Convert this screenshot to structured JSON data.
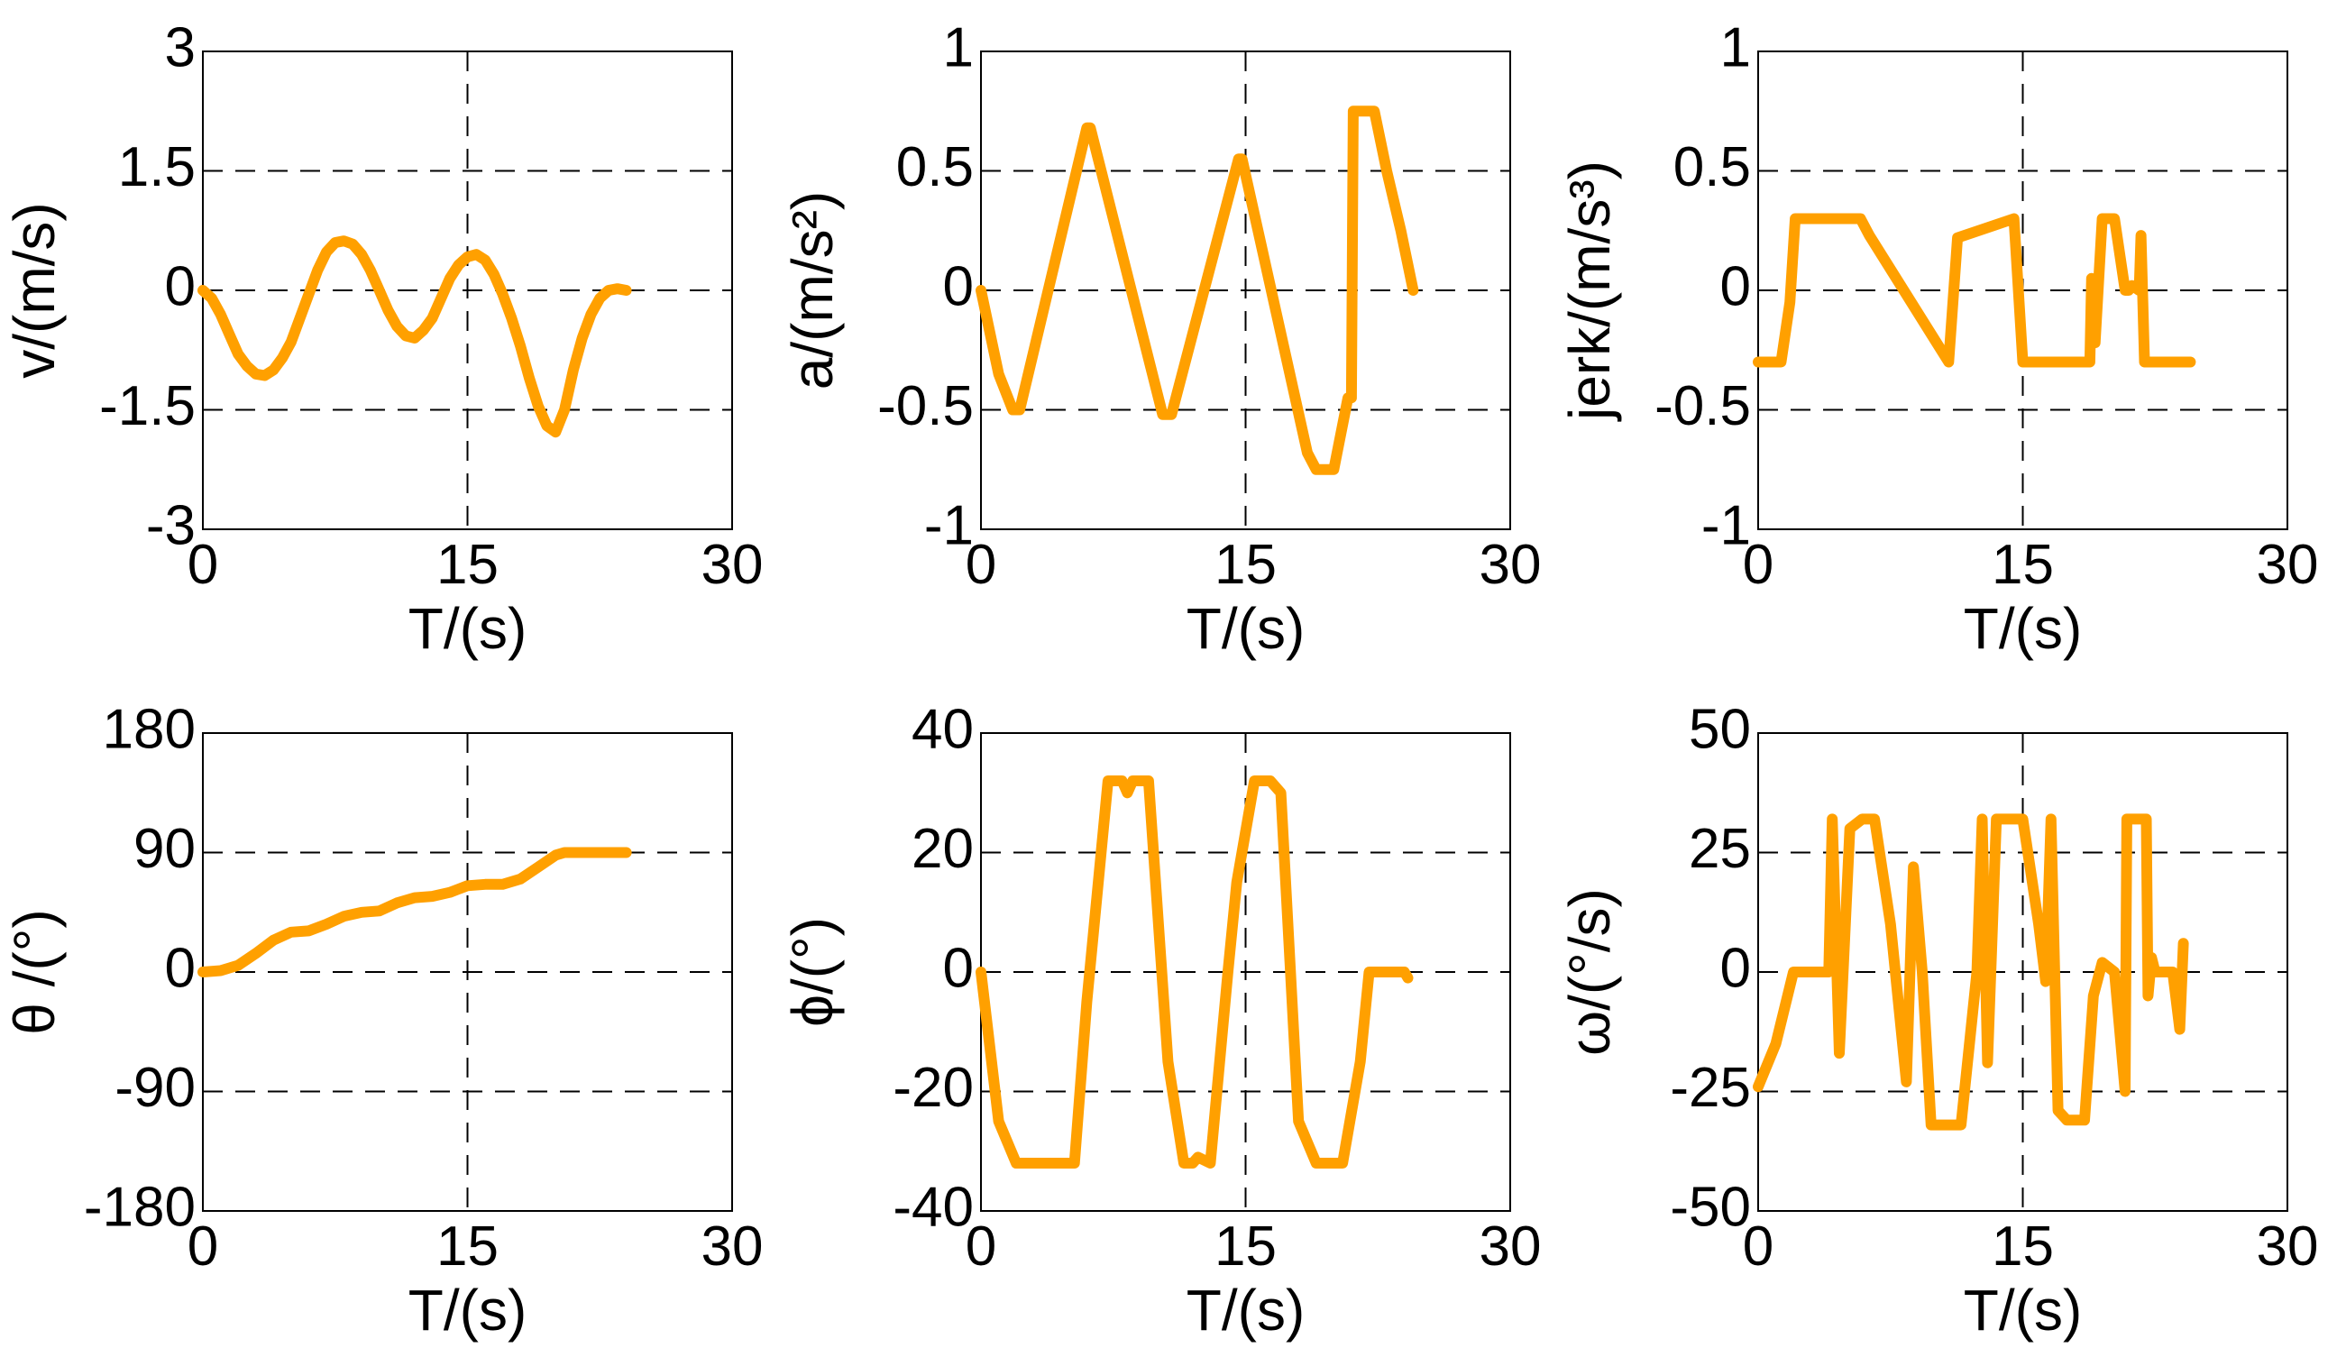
{
  "colors": {
    "series": "#ffa000",
    "axes": "#000000",
    "background": "#ffffff"
  },
  "chart_data": [
    {
      "type": "line",
      "xlabel": "T/(s)",
      "ylabel": "v/(m/s)",
      "xlim": [
        0,
        30
      ],
      "ylim": [
        -3,
        3
      ],
      "xticks": [
        0,
        15,
        30
      ],
      "xtick_labels": [
        "0",
        "15",
        "30"
      ],
      "yticks": [
        -3,
        -1.5,
        0,
        1.5,
        3
      ],
      "ytick_labels": [
        "-3",
        "-1.5",
        "0",
        "1.5",
        "3"
      ],
      "grid": "dashed",
      "series": [
        {
          "name": "v",
          "x": [
            0,
            0.5,
            1,
            1.5,
            2,
            2.5,
            3,
            3.5,
            4,
            4.5,
            5,
            5.5,
            6,
            6.5,
            7,
            7.5,
            8,
            8.5,
            9,
            9.5,
            10,
            10.5,
            11,
            11.5,
            12,
            12.5,
            13,
            13.5,
            14,
            14.5,
            15,
            15.5,
            16,
            16.5,
            17,
            17.5,
            18,
            18.5,
            19,
            19.5,
            20,
            20.5,
            21,
            21.5,
            22,
            22.5,
            23,
            23.5,
            24
          ],
          "y": [
            0,
            -0.1,
            -0.3,
            -0.55,
            -0.8,
            -0.95,
            -1.05,
            -1.07,
            -1.0,
            -0.85,
            -0.65,
            -0.35,
            -0.05,
            0.25,
            0.48,
            0.6,
            0.62,
            0.58,
            0.45,
            0.25,
            0.0,
            -0.25,
            -0.45,
            -0.57,
            -0.6,
            -0.5,
            -0.35,
            -0.1,
            0.15,
            0.32,
            0.42,
            0.45,
            0.38,
            0.2,
            -0.05,
            -0.35,
            -0.7,
            -1.1,
            -1.45,
            -1.7,
            -1.78,
            -1.5,
            -1.0,
            -0.6,
            -0.3,
            -0.1,
            0.0,
            0.02,
            0.0
          ]
        }
      ]
    },
    {
      "type": "line",
      "xlabel": "T/(s)",
      "ylabel": "a/(m/s²)",
      "xlim": [
        0,
        30
      ],
      "ylim": [
        -1,
        1
      ],
      "xticks": [
        0,
        15,
        30
      ],
      "xtick_labels": [
        "0",
        "15",
        "30"
      ],
      "yticks": [
        -1,
        -0.5,
        0,
        0.5,
        1
      ],
      "ytick_labels": [
        "-1",
        "-0.5",
        "0",
        "0.5",
        "1"
      ],
      "grid": "dashed",
      "series": [
        {
          "name": "a",
          "x": [
            0,
            1,
            1.8,
            2.2,
            6,
            6.2,
            10.3,
            10.8,
            14.6,
            14.8,
            18.5,
            19,
            20,
            20.8,
            21,
            21.1,
            22.3,
            23,
            23.8,
            24.5
          ],
          "y": [
            0,
            -0.35,
            -0.5,
            -0.5,
            0.68,
            0.68,
            -0.52,
            -0.52,
            0.55,
            0.55,
            -0.68,
            -0.75,
            -0.75,
            -0.45,
            -0.45,
            0.75,
            0.75,
            0.5,
            0.25,
            0.0
          ]
        }
      ]
    },
    {
      "type": "line",
      "xlabel": "T/(s)",
      "ylabel": "jerk/(m/s³)",
      "xlim": [
        0,
        30
      ],
      "ylim": [
        -1,
        1
      ],
      "xticks": [
        0,
        15,
        30
      ],
      "xtick_labels": [
        "0",
        "15",
        "30"
      ],
      "yticks": [
        -1,
        -0.5,
        0,
        0.5,
        1
      ],
      "ytick_labels": [
        "-1",
        "-0.5",
        "0",
        "0.5",
        "1"
      ],
      "grid": "dashed",
      "series": [
        {
          "name": "jerk",
          "x": [
            0,
            1.3,
            1.8,
            2.1,
            5.8,
            6.3,
            10.8,
            11.3,
            14.5,
            15,
            18.8,
            18.9,
            19.1,
            19.5,
            20.2,
            20.8,
            21,
            21.2,
            21.6,
            21.7,
            21.9,
            22.0,
            24.5
          ],
          "y": [
            -0.3,
            -0.3,
            -0.05,
            0.3,
            0.3,
            0.23,
            -0.3,
            0.22,
            0.3,
            -0.3,
            -0.3,
            0.05,
            -0.22,
            0.3,
            0.3,
            0.0,
            0.0,
            0.02,
            0.0,
            0.23,
            -0.3,
            -0.3,
            -0.3
          ]
        }
      ]
    },
    {
      "type": "line",
      "xlabel": "T/(s)",
      "ylabel": "θ /(°)",
      "xlim": [
        0,
        30
      ],
      "ylim": [
        -180,
        180
      ],
      "xticks": [
        0,
        15,
        30
      ],
      "xtick_labels": [
        "0",
        "15",
        "30"
      ],
      "yticks": [
        -180,
        -90,
        0,
        90,
        180
      ],
      "ytick_labels": [
        "-180",
        "-90",
        "0",
        "90",
        "180"
      ],
      "grid": "dashed",
      "series": [
        {
          "name": "theta",
          "x": [
            0,
            1,
            2,
            3,
            4,
            5,
            6,
            7,
            8,
            9,
            10,
            11,
            12,
            13,
            14,
            15,
            16,
            17,
            18,
            19,
            20,
            20.5,
            21,
            21.5,
            24
          ],
          "y": [
            0,
            1,
            5,
            14,
            24,
            30,
            31,
            36,
            42,
            45,
            46,
            52,
            56,
            57,
            60,
            65,
            66,
            66,
            70,
            79,
            88,
            90,
            90,
            90,
            90
          ]
        }
      ]
    },
    {
      "type": "line",
      "xlabel": "T/(s)",
      "ylabel": "ϕ/(°)",
      "xlim": [
        0,
        30
      ],
      "ylim": [
        -40,
        40
      ],
      "xticks": [
        0,
        15,
        30
      ],
      "xtick_labels": [
        "0",
        "15",
        "30"
      ],
      "yticks": [
        -40,
        -20,
        0,
        20,
        40
      ],
      "ytick_labels": [
        "-40",
        "-20",
        "0",
        "20",
        "40"
      ],
      "grid": "dashed",
      "series": [
        {
          "name": "phi",
          "x": [
            0,
            1,
            2,
            5.3,
            6,
            7.2,
            8,
            8.3,
            8.6,
            9.5,
            10.6,
            11.5,
            12,
            12.3,
            13,
            14,
            14.5,
            15.5,
            16.4,
            17,
            18,
            19,
            20.5,
            21.5,
            22,
            24,
            24.2
          ],
          "y": [
            0,
            -25,
            -32,
            -32,
            -5,
            32,
            32,
            30,
            32,
            32,
            -15,
            -32,
            -32,
            -31,
            -32,
            0,
            15,
            32,
            32,
            30,
            -25,
            -32,
            -32,
            -15,
            0,
            0,
            -1
          ]
        }
      ]
    },
    {
      "type": "line",
      "xlabel": "T/(s)",
      "ylabel": "ω/(°/s)",
      "xlim": [
        0,
        30
      ],
      "ylim": [
        -50,
        50
      ],
      "xticks": [
        0,
        15,
        30
      ],
      "xtick_labels": [
        "0",
        "15",
        "30"
      ],
      "yticks": [
        -50,
        -25,
        0,
        25,
        50
      ],
      "ytick_labels": [
        "-50",
        "-25",
        "0",
        "25",
        "50"
      ],
      "grid": "dashed",
      "series": [
        {
          "name": "omega",
          "x": [
            0,
            1,
            2,
            4,
            4.2,
            4.6,
            5.2,
            5.9,
            6.6,
            7.5,
            8.4,
            8.8,
            9.3,
            9.8,
            10,
            11.5,
            12.4,
            12.7,
            13,
            13.5,
            14.5,
            15,
            15.9,
            16.3,
            16.6,
            17,
            17.5,
            18.5,
            19,
            19.5,
            20.2,
            20.8,
            20.9,
            21.2,
            22,
            22.1,
            22.3,
            22.5,
            23,
            23.5,
            23.9,
            24.1
          ],
          "y": [
            -24,
            -15,
            0,
            0,
            32,
            -17,
            30,
            32,
            32,
            10,
            -23,
            22,
            0,
            -32,
            -32,
            -32,
            0,
            32,
            -19,
            32,
            32,
            32,
            10,
            -2,
            32,
            -29,
            -31,
            -31,
            -5,
            2,
            0,
            -25,
            32,
            32,
            32,
            -5,
            3,
            0,
            0,
            0,
            -12,
            6
          ]
        }
      ]
    }
  ]
}
